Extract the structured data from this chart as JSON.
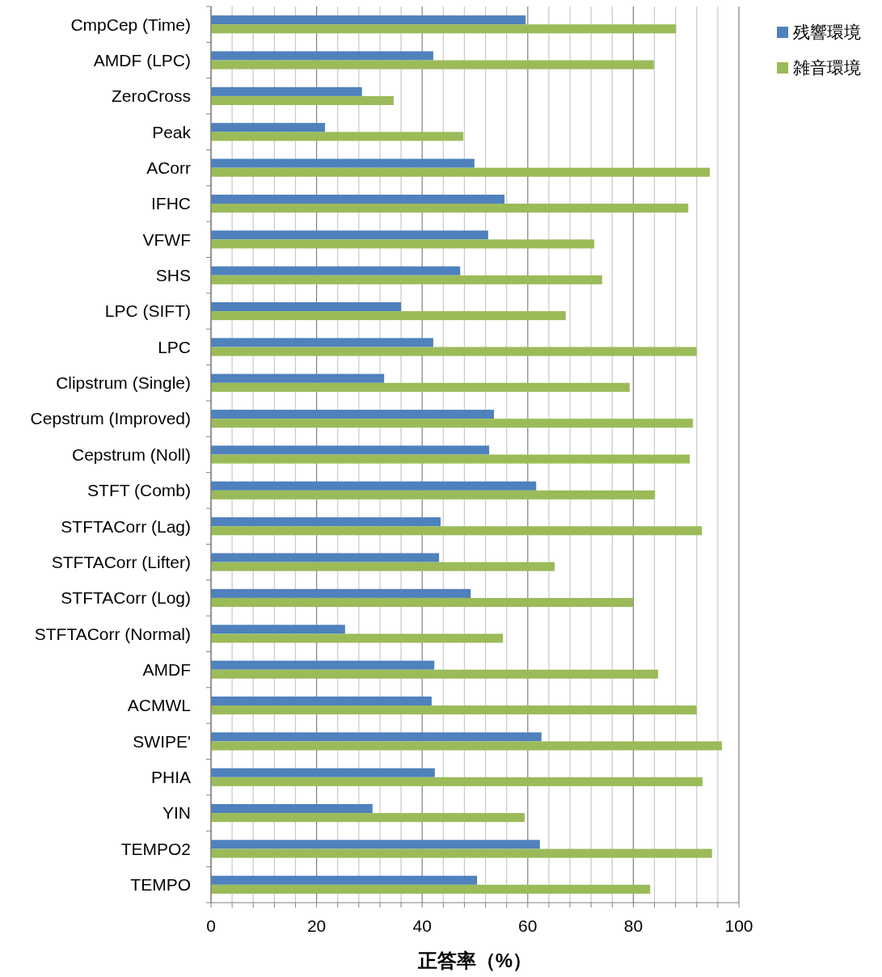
{
  "chart_data": {
    "type": "bar",
    "orientation": "horizontal",
    "xlabel": "正答率（%）",
    "categories": [
      "CmpCep (Time)",
      "AMDF (LPC)",
      "ZeroCross",
      "Peak",
      "ACorr",
      "IFHC",
      "VFWF",
      "SHS",
      "LPC (SIFT)",
      "LPC",
      "Clipstrum (Single)",
      "Cepstrum (Improved)",
      "Cepstrum (Noll)",
      "STFT (Comb)",
      "STFTACorr (Lag)",
      "STFTACorr (Lifter)",
      "STFTACorr (Log)",
      "STFTACorr (Normal)",
      "AMDF",
      "ACMWL",
      "SWIPE'",
      "PHIA",
      "YIN",
      "TEMPO2",
      "TEMPO"
    ],
    "series": [
      {
        "name": "残響環境",
        "color": "#4f81bd",
        "values": [
          59.6,
          42.1,
          28.6,
          21.6,
          49.9,
          55.6,
          52.5,
          47.2,
          36.0,
          42.1,
          32.8,
          53.6,
          52.7,
          61.6,
          43.5,
          43.2,
          49.2,
          25.4,
          42.3,
          41.8,
          62.6,
          42.4,
          30.6,
          62.3,
          50.4
        ]
      },
      {
        "name": "雑音環境",
        "color": "#9bbb59",
        "values": [
          88.1,
          83.9,
          34.6,
          47.8,
          94.5,
          90.4,
          72.6,
          74.1,
          67.2,
          92.0,
          79.3,
          91.3,
          90.7,
          84.1,
          93.0,
          65.1,
          80.0,
          55.3,
          84.7,
          92.0,
          96.8,
          93.1,
          59.4,
          94.9,
          83.2
        ]
      }
    ],
    "xlim": [
      0,
      100
    ],
    "xticks": [
      0,
      {
        "value": 4,
        "label": null
      },
      {
        "value": 8,
        "label": null
      },
      {
        "value": 12,
        "label": null
      },
      {
        "value": 16,
        "label": null
      },
      20,
      {
        "value": 24,
        "label": null
      },
      {
        "value": 28,
        "label": null
      },
      {
        "value": 32,
        "label": null
      },
      {
        "value": 36,
        "label": null
      },
      40,
      {
        "value": 44,
        "label": null
      },
      {
        "value": 48,
        "label": null
      },
      {
        "value": 52,
        "label": null
      },
      {
        "value": 56,
        "label": null
      },
      60,
      {
        "value": 64,
        "label": null
      },
      {
        "value": 68,
        "label": null
      },
      {
        "value": 72,
        "label": null
      },
      {
        "value": 76,
        "label": null
      },
      80,
      {
        "value": 84,
        "label": null
      },
      {
        "value": 88,
        "label": null
      },
      {
        "value": 92,
        "label": null
      },
      {
        "value": 96,
        "label": null
      },
      100
    ],
    "grid": "x",
    "legend": "top right"
  }
}
